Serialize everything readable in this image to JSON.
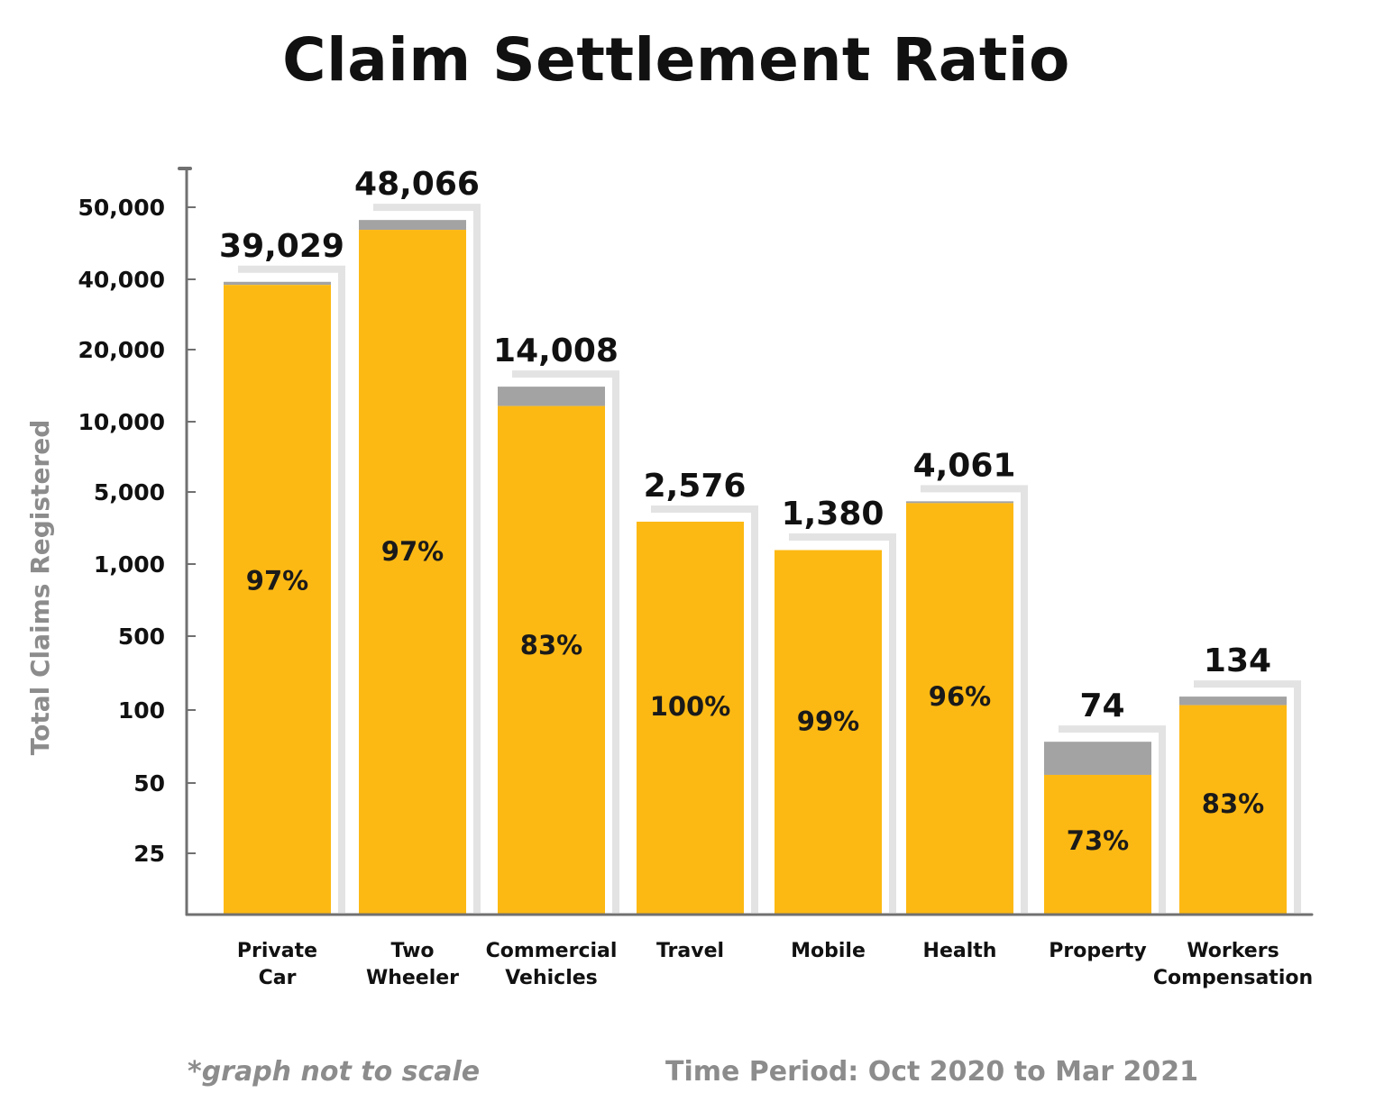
{
  "chart_data": {
    "type": "bar",
    "title": "Claim Settlement Ratio",
    "ylabel": "Total Claims Registered",
    "xlabel": "",
    "y_ticks": [
      "25",
      "50",
      "100",
      "500",
      "1,000",
      "5,000",
      "10,000",
      "20,000",
      "40,000",
      "50,000"
    ],
    "y_tick_values": [
      25,
      50,
      100,
      500,
      1000,
      5000,
      10000,
      20000,
      40000,
      50000
    ],
    "scale_note": "not to scale (custom stepped axis)",
    "categories": [
      [
        "Private",
        "Car"
      ],
      [
        "Two",
        "Wheeler"
      ],
      [
        "Commercial",
        "Vehicles"
      ],
      [
        "Travel"
      ],
      [
        "Mobile"
      ],
      [
        "Health"
      ],
      [
        "Property"
      ],
      [
        "Workers",
        "Compensation"
      ]
    ],
    "totals": [
      39029,
      48066,
      14008,
      2576,
      1380,
      4061,
      74,
      134
    ],
    "total_labels": [
      "39,029",
      "48,066",
      "14,008",
      "2,576",
      "1,380",
      "4,061",
      "74",
      "134"
    ],
    "settled_pct": [
      97,
      97,
      83,
      100,
      99,
      96,
      73,
      83
    ],
    "settled_labels": [
      "97%",
      "97%",
      "83%",
      "100%",
      "99%",
      "96%",
      "73%",
      "83%"
    ],
    "series": [
      {
        "name": "",
        "color": "#fdb913"
      },
      {
        "name": "",
        "color": "#a3a3a3"
      }
    ],
    "grid": false,
    "legend": "none"
  },
  "footer": {
    "note": "*graph not to scale",
    "period": "Time Period: Oct 2020 to Mar 2021"
  },
  "colors": {
    "settled": "#fdb913",
    "unsettled": "#a3a3a3",
    "axis": "#707070",
    "shadow": "#e3e3e3",
    "ylabel": "#8c8c8c"
  }
}
